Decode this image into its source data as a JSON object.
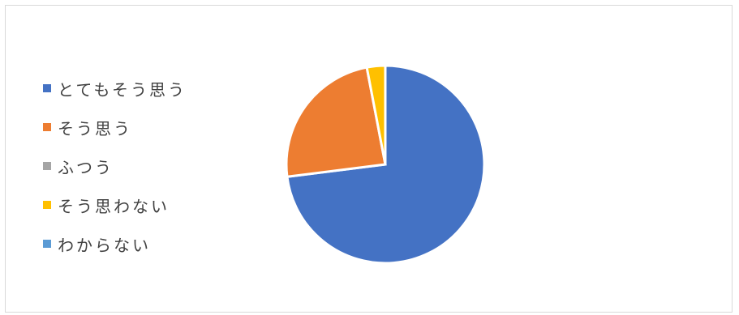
{
  "chart_data": {
    "type": "pie",
    "title": "",
    "legend_position": "left",
    "categories": [
      "とてもそう思う",
      "そう思う",
      "ふつう",
      "そう思わない",
      "わからない"
    ],
    "values": [
      73,
      24,
      0,
      3,
      0
    ],
    "colors": [
      "#4472C4",
      "#ED7D31",
      "#A5A5A5",
      "#FFC000",
      "#5B9BD5"
    ]
  }
}
